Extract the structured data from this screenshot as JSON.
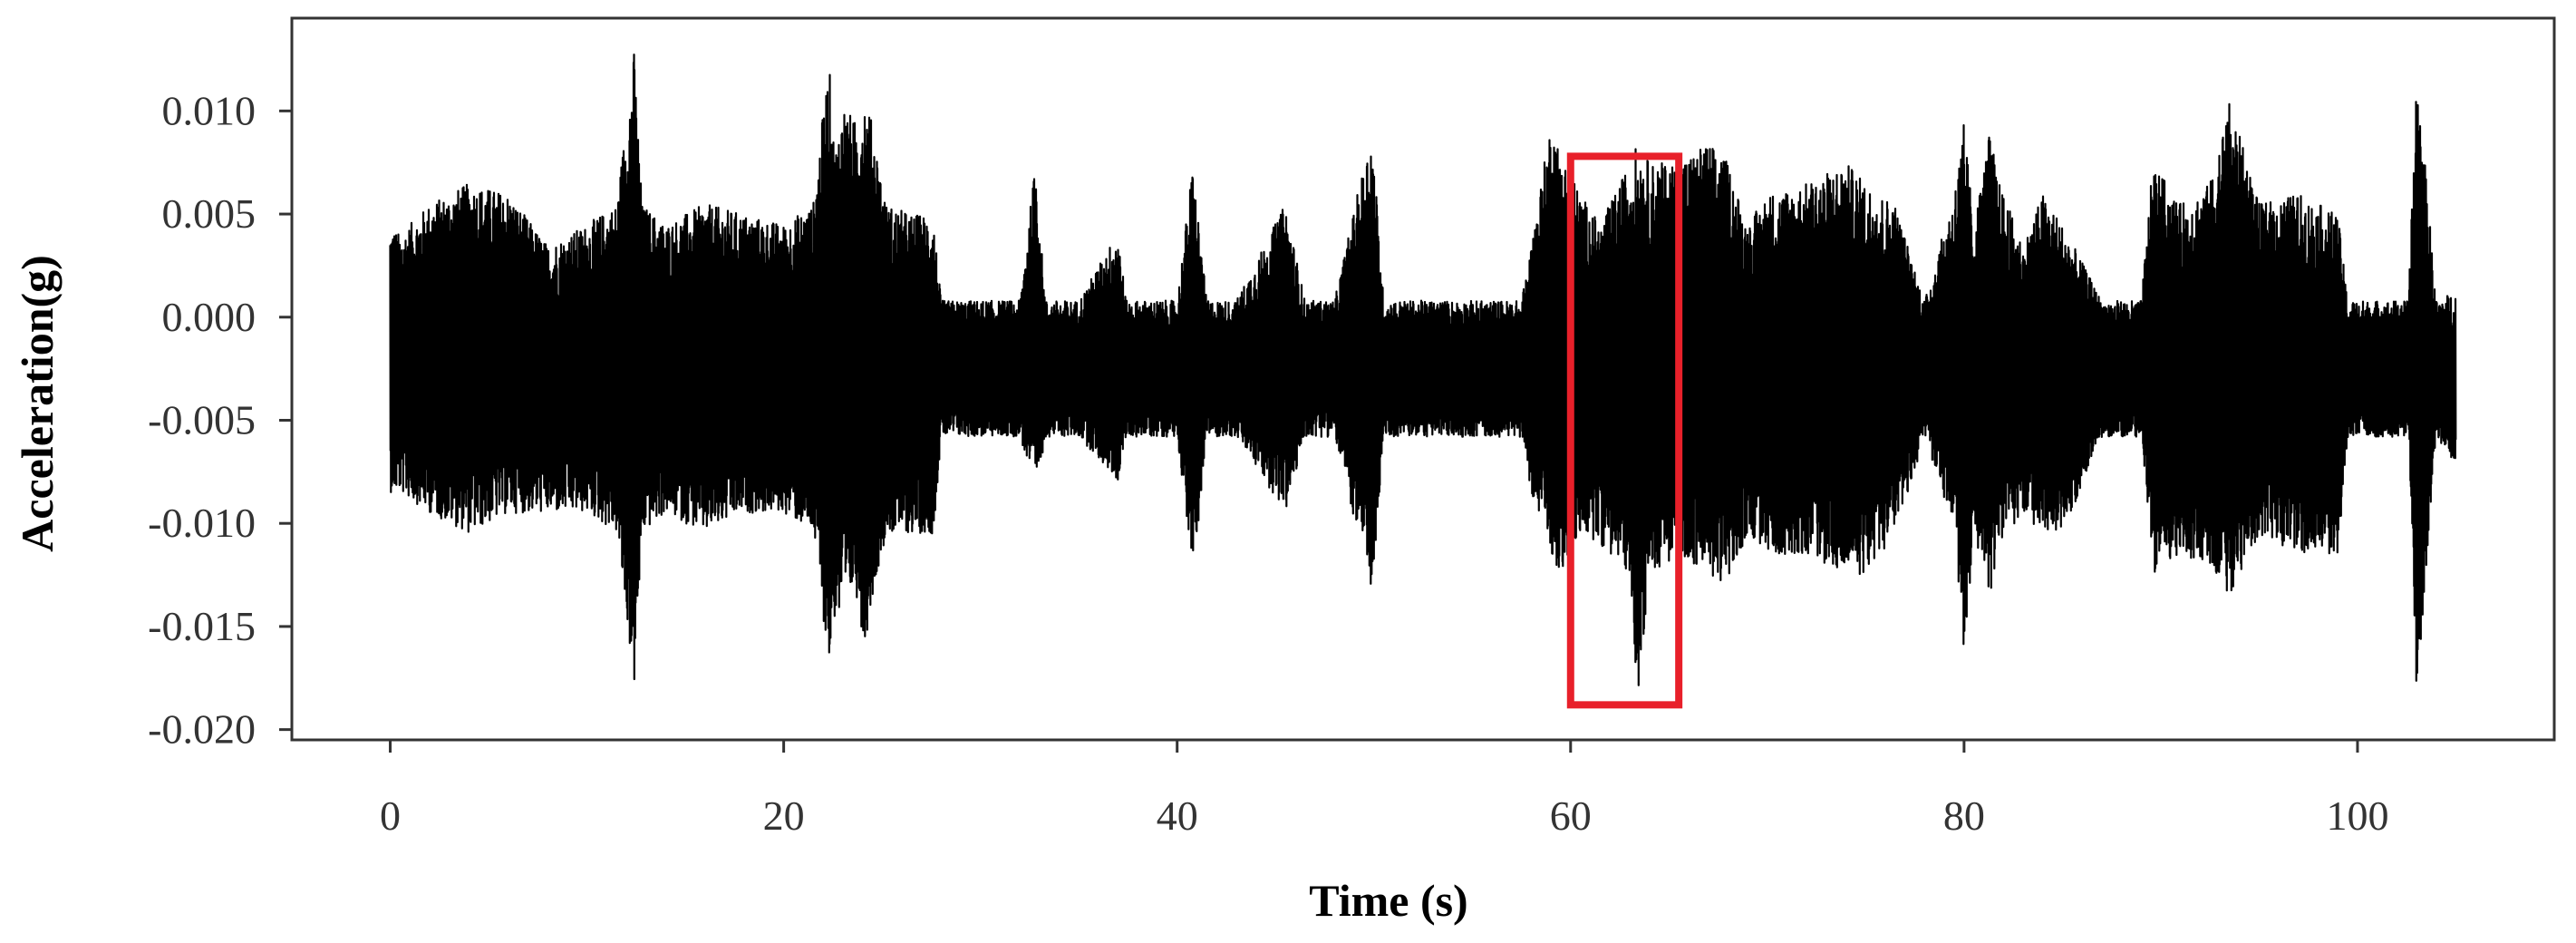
{
  "chart_data": {
    "type": "line",
    "title": "",
    "xlabel": "Time (s)",
    "ylabel": "Acceleration(g)",
    "xlim": [
      -5,
      110
    ],
    "ylim": [
      -0.0205,
      0.0145
    ],
    "x_ticks": [
      0,
      20,
      40,
      60,
      80,
      100
    ],
    "x_tick_labels": [
      "0",
      "20",
      "40",
      "60",
      "80",
      "100"
    ],
    "y_ticks": [
      0.01,
      0.005,
      0.0,
      -0.005,
      -0.01,
      -0.015,
      -0.02
    ],
    "y_tick_labels": [
      "0.010",
      "0.005",
      "0.000",
      "-0.005",
      "-0.010",
      "-0.015",
      "-0.020"
    ],
    "grid": false,
    "legend": "none",
    "line_color": "#000000",
    "highlight_color": "#e8202a",
    "series": [
      {
        "time_start": 0,
        "time_end": 105,
        "envelope": {
          "time": [
            0,
            0.5,
            2,
            4,
            6,
            8,
            10,
            11.5,
            12.4,
            12.8,
            14,
            16,
            18,
            20,
            21.5,
            22.3,
            22.6,
            23,
            23.6,
            24.1,
            24.6,
            25.2,
            26.5,
            27.6,
            28,
            30,
            32,
            32.8,
            33.3,
            35,
            37,
            37.4,
            40,
            40.8,
            41.5,
            43,
            45.5,
            46.5,
            48,
            49.9,
            50.5,
            52,
            55,
            57.5,
            58,
            59,
            59.5,
            60.5,
            61.5,
            63,
            63.4,
            64,
            65.5,
            67,
            68,
            69,
            70,
            72,
            74,
            75,
            76.5,
            78,
            79.5,
            80,
            80.5,
            81.3,
            81.8,
            83,
            84,
            85,
            87,
            89,
            89.6,
            91,
            92.5,
            93.5,
            95,
            97,
            99,
            99.5,
            101,
            102.6,
            103,
            104,
            105
          ],
          "max": [
            0.0045,
            0.004,
            0.0055,
            0.0065,
            0.006,
            0.0035,
            0.0045,
            0.0055,
            0.013,
            0.0055,
            0.0045,
            0.0055,
            0.005,
            0.0045,
            0.0055,
            0.0125,
            0.008,
            0.0105,
            0.0095,
            0.011,
            0.009,
            0.0055,
            0.005,
            0.005,
            0.0008,
            0.0008,
            0.0008,
            0.0075,
            0.0008,
            0.0008,
            0.0042,
            0.0008,
            0.0008,
            0.0075,
            0.0008,
            0.0008,
            0.0055,
            0.0008,
            0.0008,
            0.0092,
            0.0008,
            0.0008,
            0.0008,
            0.0008,
            0.0035,
            0.0095,
            0.008,
            0.006,
            0.0045,
            0.0075,
            0.0085,
            0.0075,
            0.0075,
            0.0085,
            0.0075,
            0.0045,
            0.006,
            0.0065,
            0.0075,
            0.0065,
            0.0055,
            0.0008,
            0.006,
            0.0095,
            0.0045,
            0.009,
            0.0065,
            0.0035,
            0.006,
            0.0045,
            0.0008,
            0.0008,
            0.0075,
            0.0055,
            0.0065,
            0.0105,
            0.0055,
            0.006,
            0.005,
            0.0008,
            0.0008,
            0.0008,
            0.0125,
            0.0008,
            0.0013
          ],
          "min": [
            -0.0085,
            -0.0085,
            -0.0095,
            -0.0105,
            -0.0095,
            -0.0095,
            -0.0095,
            -0.0105,
            -0.018,
            -0.0105,
            -0.0095,
            -0.0105,
            -0.0095,
            -0.0095,
            -0.0105,
            -0.017,
            -0.0145,
            -0.015,
            -0.013,
            -0.016,
            -0.013,
            -0.0105,
            -0.0105,
            -0.0105,
            -0.0058,
            -0.0058,
            -0.0058,
            -0.0085,
            -0.0058,
            -0.0058,
            -0.008,
            -0.0058,
            -0.0058,
            -0.0125,
            -0.0058,
            -0.0058,
            -0.0095,
            -0.0058,
            -0.0058,
            -0.0135,
            -0.0058,
            -0.0058,
            -0.0058,
            -0.0058,
            -0.0085,
            -0.0115,
            -0.0125,
            -0.0105,
            -0.011,
            -0.0125,
            -0.0185,
            -0.0125,
            -0.0115,
            -0.0125,
            -0.013,
            -0.0105,
            -0.0115,
            -0.0115,
            -0.0125,
            -0.0125,
            -0.0105,
            -0.0058,
            -0.0105,
            -0.0165,
            -0.0105,
            -0.0135,
            -0.011,
            -0.0095,
            -0.0105,
            -0.0105,
            -0.0058,
            -0.0058,
            -0.0125,
            -0.0115,
            -0.012,
            -0.0135,
            -0.0105,
            -0.0115,
            -0.0115,
            -0.0058,
            -0.0058,
            -0.0058,
            -0.0185,
            -0.0058,
            -0.0072
          ]
        }
      }
    ],
    "highlight_box": {
      "time_range": [
        60,
        65.5
      ],
      "accel_range": [
        -0.0188,
        0.0078
      ]
    }
  }
}
